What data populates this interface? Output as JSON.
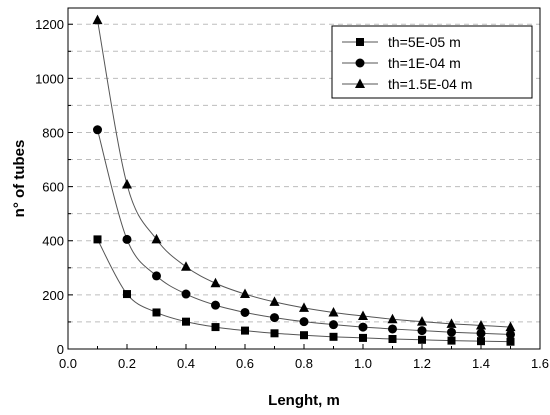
{
  "chart_data": {
    "type": "line",
    "title": "",
    "xlabel": "Lenght, m",
    "ylabel": "n° of tubes",
    "xlim": [
      0.0,
      1.6
    ],
    "ylim": [
      0,
      1260
    ],
    "xticks": [
      0.0,
      0.2,
      0.4,
      0.6,
      0.8,
      1.0,
      1.2,
      1.4,
      1.6
    ],
    "xtick_labels": [
      "0.0",
      "0.2",
      "0.4",
      "0.6",
      "0.8",
      "1.0",
      "1.2",
      "1.4",
      "1.6"
    ],
    "yticks": [
      0,
      200,
      400,
      600,
      800,
      1000,
      1200
    ],
    "ytick_labels": [
      "0",
      "200",
      "400",
      "600",
      "800",
      "1000",
      "1200"
    ],
    "grid": "dashed horizontal",
    "legend_position": "top-right",
    "x": [
      0.1,
      0.2,
      0.3,
      0.4,
      0.5,
      0.6,
      0.7,
      0.8,
      0.9,
      1.0,
      1.1,
      1.2,
      1.3,
      1.4,
      1.5
    ],
    "series": [
      {
        "name": "th=5E-05 m",
        "marker": "square",
        "values": [
          405,
          203,
          135,
          101,
          81,
          68,
          58,
          51,
          45,
          41,
          37,
          34,
          31,
          29,
          27
        ]
      },
      {
        "name": "th=1E-04 m",
        "marker": "circle",
        "values": [
          810,
          405,
          270,
          203,
          162,
          135,
          116,
          101,
          90,
          81,
          74,
          68,
          62,
          58,
          54
        ]
      },
      {
        "name": "th=1.5E-04 m",
        "marker": "triangle",
        "values": [
          1215,
          608,
          405,
          304,
          243,
          203,
          174,
          152,
          135,
          122,
          110,
          101,
          93,
          87,
          81
        ]
      }
    ],
    "line_color": "#555555",
    "marker_color": "#000000"
  }
}
